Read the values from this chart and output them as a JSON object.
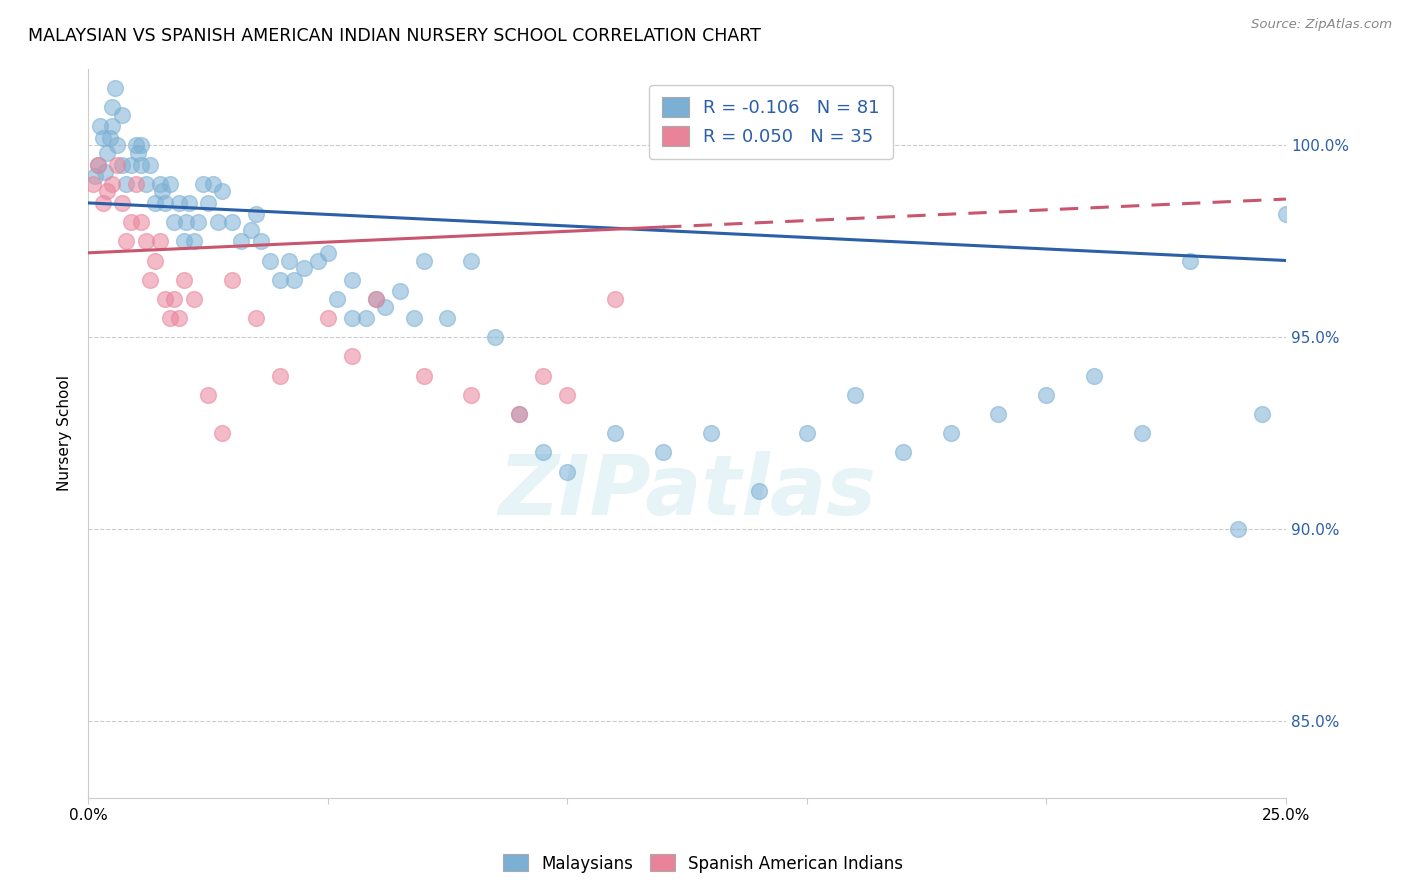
{
  "title": "MALAYSIAN VS SPANISH AMERICAN INDIAN NURSERY SCHOOL CORRELATION CHART",
  "source": "Source: ZipAtlas.com",
  "ylabel": "Nursery School",
  "ytick_values": [
    85.0,
    90.0,
    95.0,
    100.0
  ],
  "xmin": 0.0,
  "xmax": 25.0,
  "ymin": 83.0,
  "ymax": 102.0,
  "legend_blue_r": "-0.106",
  "legend_blue_n": "81",
  "legend_pink_r": "0.050",
  "legend_pink_n": "35",
  "watermark": "ZIPatlas",
  "blue_color": "#7bafd4",
  "pink_color": "#e8839a",
  "blue_line_color": "#2b5fa8",
  "pink_line_color": "#c9566e",
  "blue_line_x0": 0.0,
  "blue_line_y0": 98.5,
  "blue_line_x1": 25.0,
  "blue_line_y1": 97.0,
  "pink_line_x0": 0.0,
  "pink_line_y0": 97.2,
  "pink_line_x1": 25.0,
  "pink_line_y1": 98.6,
  "pink_solid_end": 12.0,
  "blue_x": [
    0.2,
    0.3,
    0.4,
    0.5,
    0.5,
    0.6,
    0.7,
    0.7,
    0.8,
    0.9,
    1.0,
    1.1,
    1.1,
    1.2,
    1.3,
    1.4,
    1.5,
    1.6,
    1.7,
    1.8,
    1.9,
    2.0,
    2.1,
    2.2,
    2.3,
    2.4,
    2.5,
    2.6,
    2.7,
    2.8,
    3.0,
    3.2,
    3.4,
    3.6,
    3.8,
    4.0,
    4.2,
    4.5,
    4.8,
    5.0,
    5.2,
    5.5,
    5.8,
    6.0,
    6.2,
    6.5,
    6.8,
    7.0,
    7.5,
    8.0,
    8.5,
    9.0,
    9.5,
    10.0,
    11.0,
    12.0,
    13.0,
    14.0,
    15.0,
    16.0,
    17.0,
    18.0,
    19.0,
    20.0,
    21.0,
    22.0,
    23.0,
    24.0,
    24.5,
    25.0,
    0.15,
    0.25,
    0.35,
    0.45,
    0.55,
    1.05,
    1.55,
    2.05,
    3.5,
    4.3,
    5.5
  ],
  "blue_y": [
    99.5,
    100.2,
    99.8,
    100.5,
    101.0,
    100.0,
    99.5,
    100.8,
    99.0,
    99.5,
    100.0,
    99.5,
    100.0,
    99.0,
    99.5,
    98.5,
    99.0,
    98.5,
    99.0,
    98.0,
    98.5,
    97.5,
    98.5,
    97.5,
    98.0,
    99.0,
    98.5,
    99.0,
    98.0,
    98.8,
    98.0,
    97.5,
    97.8,
    97.5,
    97.0,
    96.5,
    97.0,
    96.8,
    97.0,
    97.2,
    96.0,
    96.5,
    95.5,
    96.0,
    95.8,
    96.2,
    95.5,
    97.0,
    95.5,
    97.0,
    95.0,
    93.0,
    92.0,
    91.5,
    92.5,
    92.0,
    92.5,
    91.0,
    92.5,
    93.5,
    92.0,
    92.5,
    93.0,
    93.5,
    94.0,
    92.5,
    97.0,
    90.0,
    93.0,
    98.2,
    99.2,
    100.5,
    99.3,
    100.2,
    101.5,
    99.8,
    98.8,
    98.0,
    98.2,
    96.5,
    95.5
  ],
  "pink_x": [
    0.1,
    0.2,
    0.3,
    0.4,
    0.5,
    0.6,
    0.7,
    0.8,
    0.9,
    1.0,
    1.1,
    1.2,
    1.3,
    1.4,
    1.5,
    1.6,
    1.7,
    1.8,
    1.9,
    2.0,
    2.2,
    2.5,
    2.8,
    3.0,
    3.5,
    4.0,
    5.0,
    5.5,
    6.0,
    7.0,
    8.0,
    9.0,
    9.5,
    10.0,
    11.0
  ],
  "pink_y": [
    99.0,
    99.5,
    98.5,
    98.8,
    99.0,
    99.5,
    98.5,
    97.5,
    98.0,
    99.0,
    98.0,
    97.5,
    96.5,
    97.0,
    97.5,
    96.0,
    95.5,
    96.0,
    95.5,
    96.5,
    96.0,
    93.5,
    92.5,
    96.5,
    95.5,
    94.0,
    95.5,
    94.5,
    96.0,
    94.0,
    93.5,
    93.0,
    94.0,
    93.5,
    96.0
  ]
}
